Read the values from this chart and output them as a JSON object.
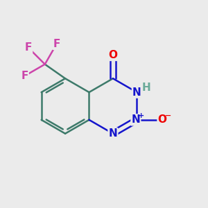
{
  "bg_color": "#ebebeb",
  "bond_color_ring": "#3d7a6a",
  "bond_color_N": "#1515cc",
  "bond_color_F": "#cc44aa",
  "bond_width": 1.8,
  "dbo": 0.013,
  "atom_colors": {
    "O": "#ee0000",
    "N": "#1515cc",
    "NH": "#6aaa99",
    "F": "#cc44aa",
    "Ominus": "#ee0000"
  },
  "font_size_main": 11,
  "font_size_small": 8
}
